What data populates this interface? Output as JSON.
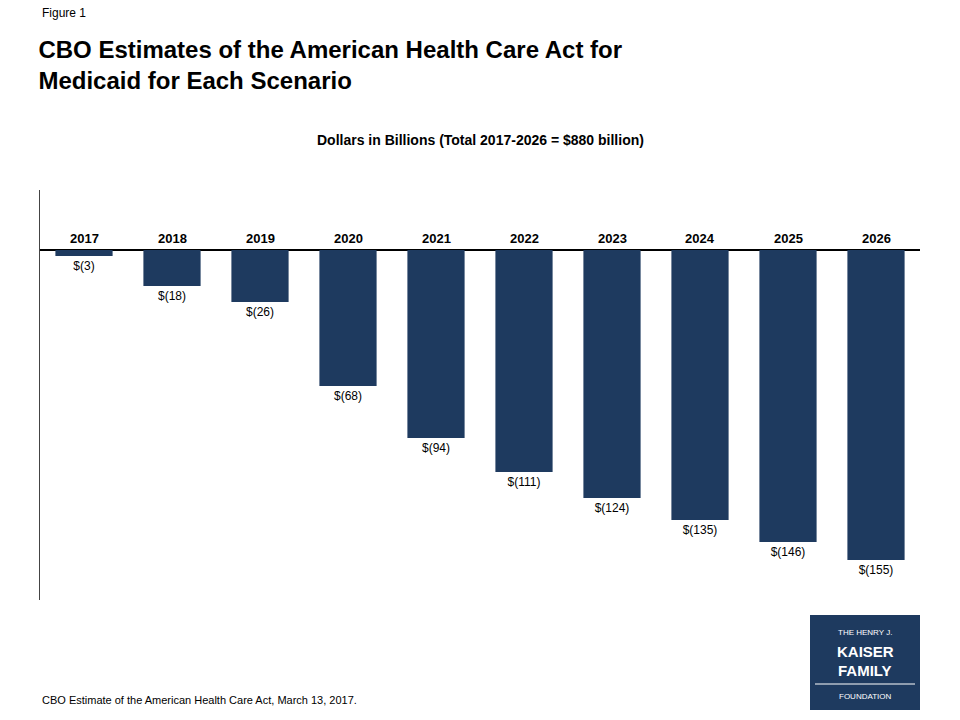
{
  "chart_data": {
    "type": "bar",
    "title": "CBO Estimates of the American Health Care Act for\nMedicaid for Each Scenario",
    "subtitle": "Dollars in Billions (Total 2017-2026 = $880 billion)",
    "categories": [
      "2017",
      "2018",
      "2019",
      "2020",
      "2021",
      "2022",
      "2023",
      "2024",
      "2025",
      "2026"
    ],
    "values": [
      -3,
      -18,
      -26,
      -68,
      -94,
      -111,
      -124,
      -135,
      -146,
      -155
    ],
    "value_labels": [
      "$(3)",
      "$(18)",
      "$(26)",
      "$(68)",
      "$(94)",
      "$(111)",
      "$(124)",
      "$(135)",
      "$(146)",
      "$(155)"
    ],
    "color": "#1e3a5f",
    "ylim": [
      -175,
      30
    ],
    "yticks": [],
    "grid": false,
    "data_labels": true,
    "tick_labels": false,
    "annotations": [
      "Figure 1",
      "CBO Estimate of the American Health Care Act, March 13, 2017.",
      "THE HENRY J.",
      "KAISER",
      "FAMILY",
      "FOUNDATION"
    ]
  }
}
